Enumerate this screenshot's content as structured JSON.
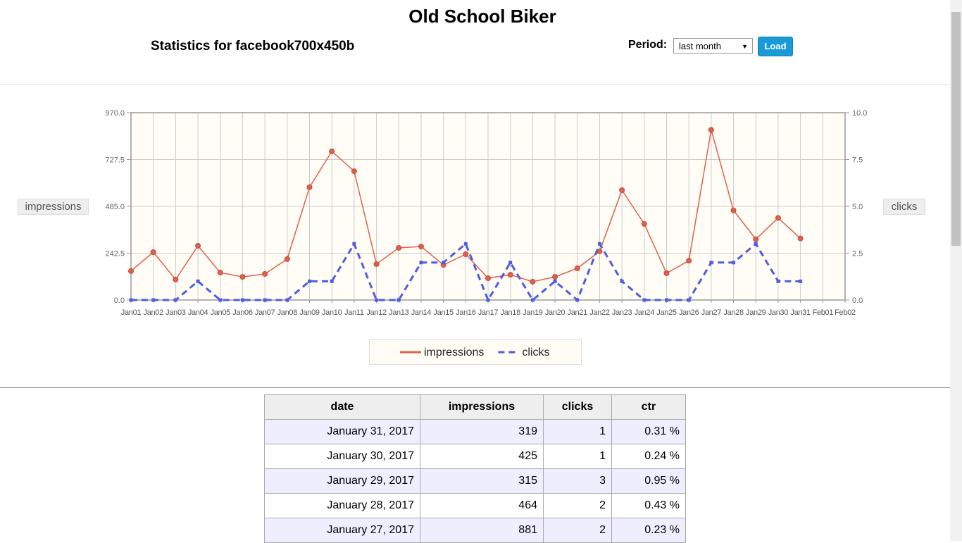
{
  "header": {
    "title": "Old School Biker",
    "subtitle": "Statistics for facebook700x450b",
    "period_label": "Period:",
    "period_value": "last month",
    "load_button": "Load"
  },
  "chart_data": {
    "type": "line",
    "categories": [
      "Jan01",
      "Jan02",
      "Jan03",
      "Jan04",
      "Jan05",
      "Jan06",
      "Jan07",
      "Jan08",
      "Jan09",
      "Jan10",
      "Jan11",
      "Jan12",
      "Jan13",
      "Jan14",
      "Jan15",
      "Jan16",
      "Jan17",
      "Jan18",
      "Jan19",
      "Jan20",
      "Jan21",
      "Jan22",
      "Jan23",
      "Jan24",
      "Jan25",
      "Jan26",
      "Jan27",
      "Jan28",
      "Jan29",
      "Jan30",
      "Jan31",
      "Feb01",
      "Feb02"
    ],
    "series": [
      {
        "name": "impressions",
        "color": "#e0604e",
        "line_style": "solid",
        "values": [
          150,
          248,
          106,
          281,
          142,
          120,
          135,
          212,
          584,
          770,
          667,
          186,
          270,
          277,
          182,
          237,
          113,
          131,
          95,
          120,
          164,
          252,
          569,
          394,
          139,
          204,
          881,
          464,
          315,
          425,
          319,
          null,
          null
        ]
      },
      {
        "name": "clicks",
        "color": "#4e5ee0",
        "line_style": "dashed",
        "axis": "y2",
        "values": [
          0,
          0,
          0,
          1,
          0,
          0,
          0,
          0,
          1,
          1,
          3,
          0,
          0,
          2,
          2,
          3,
          0,
          2,
          0,
          1,
          0,
          3,
          1,
          0,
          0,
          0,
          2,
          2,
          3,
          1,
          1,
          null,
          null
        ]
      }
    ],
    "ylabel": "impressions",
    "y2label": "clicks",
    "ylim": [
      0,
      970
    ],
    "yticks": [
      {
        "value": 0,
        "label": "0.0"
      },
      {
        "value": 242.5,
        "label": "242.5"
      },
      {
        "value": 485,
        "label": "485.0"
      },
      {
        "value": 727.5,
        "label": "727.5"
      },
      {
        "value": 970,
        "label": "970.0"
      }
    ],
    "y2lim": [
      0,
      10
    ],
    "y2ticks": [
      {
        "value": 0,
        "label": "0.0"
      },
      {
        "value": 2.5,
        "label": "2.5"
      },
      {
        "value": 5,
        "label": "5.0"
      },
      {
        "value": 7.5,
        "label": "7.5"
      },
      {
        "value": 10,
        "label": "10.0"
      }
    ],
    "grid": true,
    "legend": "bottom"
  },
  "table": {
    "columns": [
      "date",
      "impressions",
      "clicks",
      "ctr"
    ],
    "rows": [
      [
        "January 31, 2017",
        319,
        1,
        "0.31 %"
      ],
      [
        "January 30, 2017",
        425,
        1,
        "0.24 %"
      ],
      [
        "January 29, 2017",
        315,
        3,
        "0.95 %"
      ],
      [
        "January 28, 2017",
        464,
        2,
        "0.43 %"
      ],
      [
        "January 27, 2017",
        881,
        2,
        "0.23 %"
      ]
    ]
  }
}
